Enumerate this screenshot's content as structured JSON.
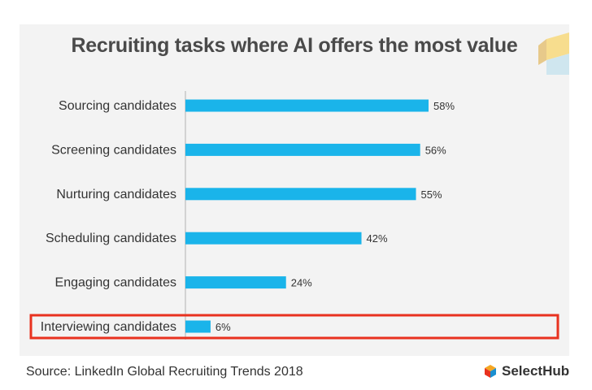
{
  "chart_data": {
    "type": "bar",
    "orientation": "horizontal",
    "title": "Recruiting tasks where AI offers the most value",
    "categories": [
      "Sourcing candidates",
      "Screening candidates",
      "Nurturing candidates",
      "Scheduling candidates",
      "Engaging candidates",
      "Interviewing candidates"
    ],
    "values": [
      58,
      56,
      55,
      42,
      24,
      6
    ],
    "value_labels": [
      "58%",
      "56%",
      "55%",
      "42%",
      "24%",
      "6%"
    ],
    "xlim": [
      0,
      100
    ],
    "highlighted_category": "Interviewing candidates",
    "bar_color": "#1ab4ea",
    "highlight_color": "#e8321f"
  },
  "footer": {
    "source": "Source: LinkedIn Global Recruiting Trends 2018",
    "brand": "SelectHub"
  },
  "colors": {
    "panel_bg": "#f3f3f3",
    "title": "#4a4a4a",
    "axis": "#b0b0b0"
  }
}
